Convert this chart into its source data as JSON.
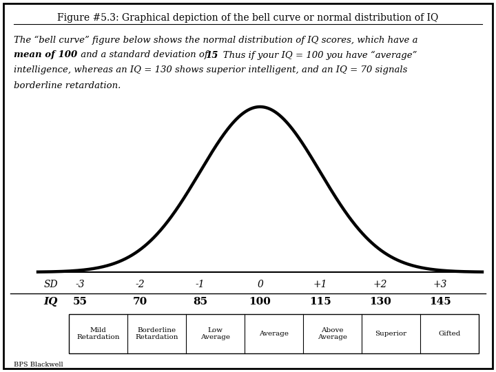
{
  "title": "Figure #5.3: Graphical depiction of the bell curve or normal distribution of IQ",
  "body_line1": "The “bell curve” figure below shows the normal distribution of IQ scores, which have a",
  "body_line2_bold1": "mean of 100",
  "body_line2_mid": " and a standard deviation of ",
  "body_line2_bold2": "15",
  "body_line2_end": ".  Thus if your IQ = 100 you have “average”",
  "body_line3": "intelligence, whereas an IQ = 130 shows superior intelligent, and an IQ = 70 signals",
  "body_line4": "borderline retardation.",
  "sd_labels": [
    "-3",
    "-2",
    "-1",
    "0",
    "+1",
    "+2",
    "+3"
  ],
  "iq_labels": [
    "55",
    "70",
    "85",
    "100",
    "115",
    "130",
    "145"
  ],
  "sd_positions": [
    -3,
    -2,
    -1,
    0,
    1,
    2,
    3
  ],
  "category_labels": [
    "Mild\nRetardation",
    "Borderline\nRetardation",
    "Low\nAverage",
    "Average",
    "Above\nAverage",
    "Superior",
    "Gifted"
  ],
  "curve_color": "#000000",
  "curve_linewidth": 3.2,
  "bg_color": "#ffffff",
  "border_color": "#000000",
  "text_color": "#000000",
  "publisher_text": "BPS Blackwell",
  "mean": 100,
  "std": 15
}
